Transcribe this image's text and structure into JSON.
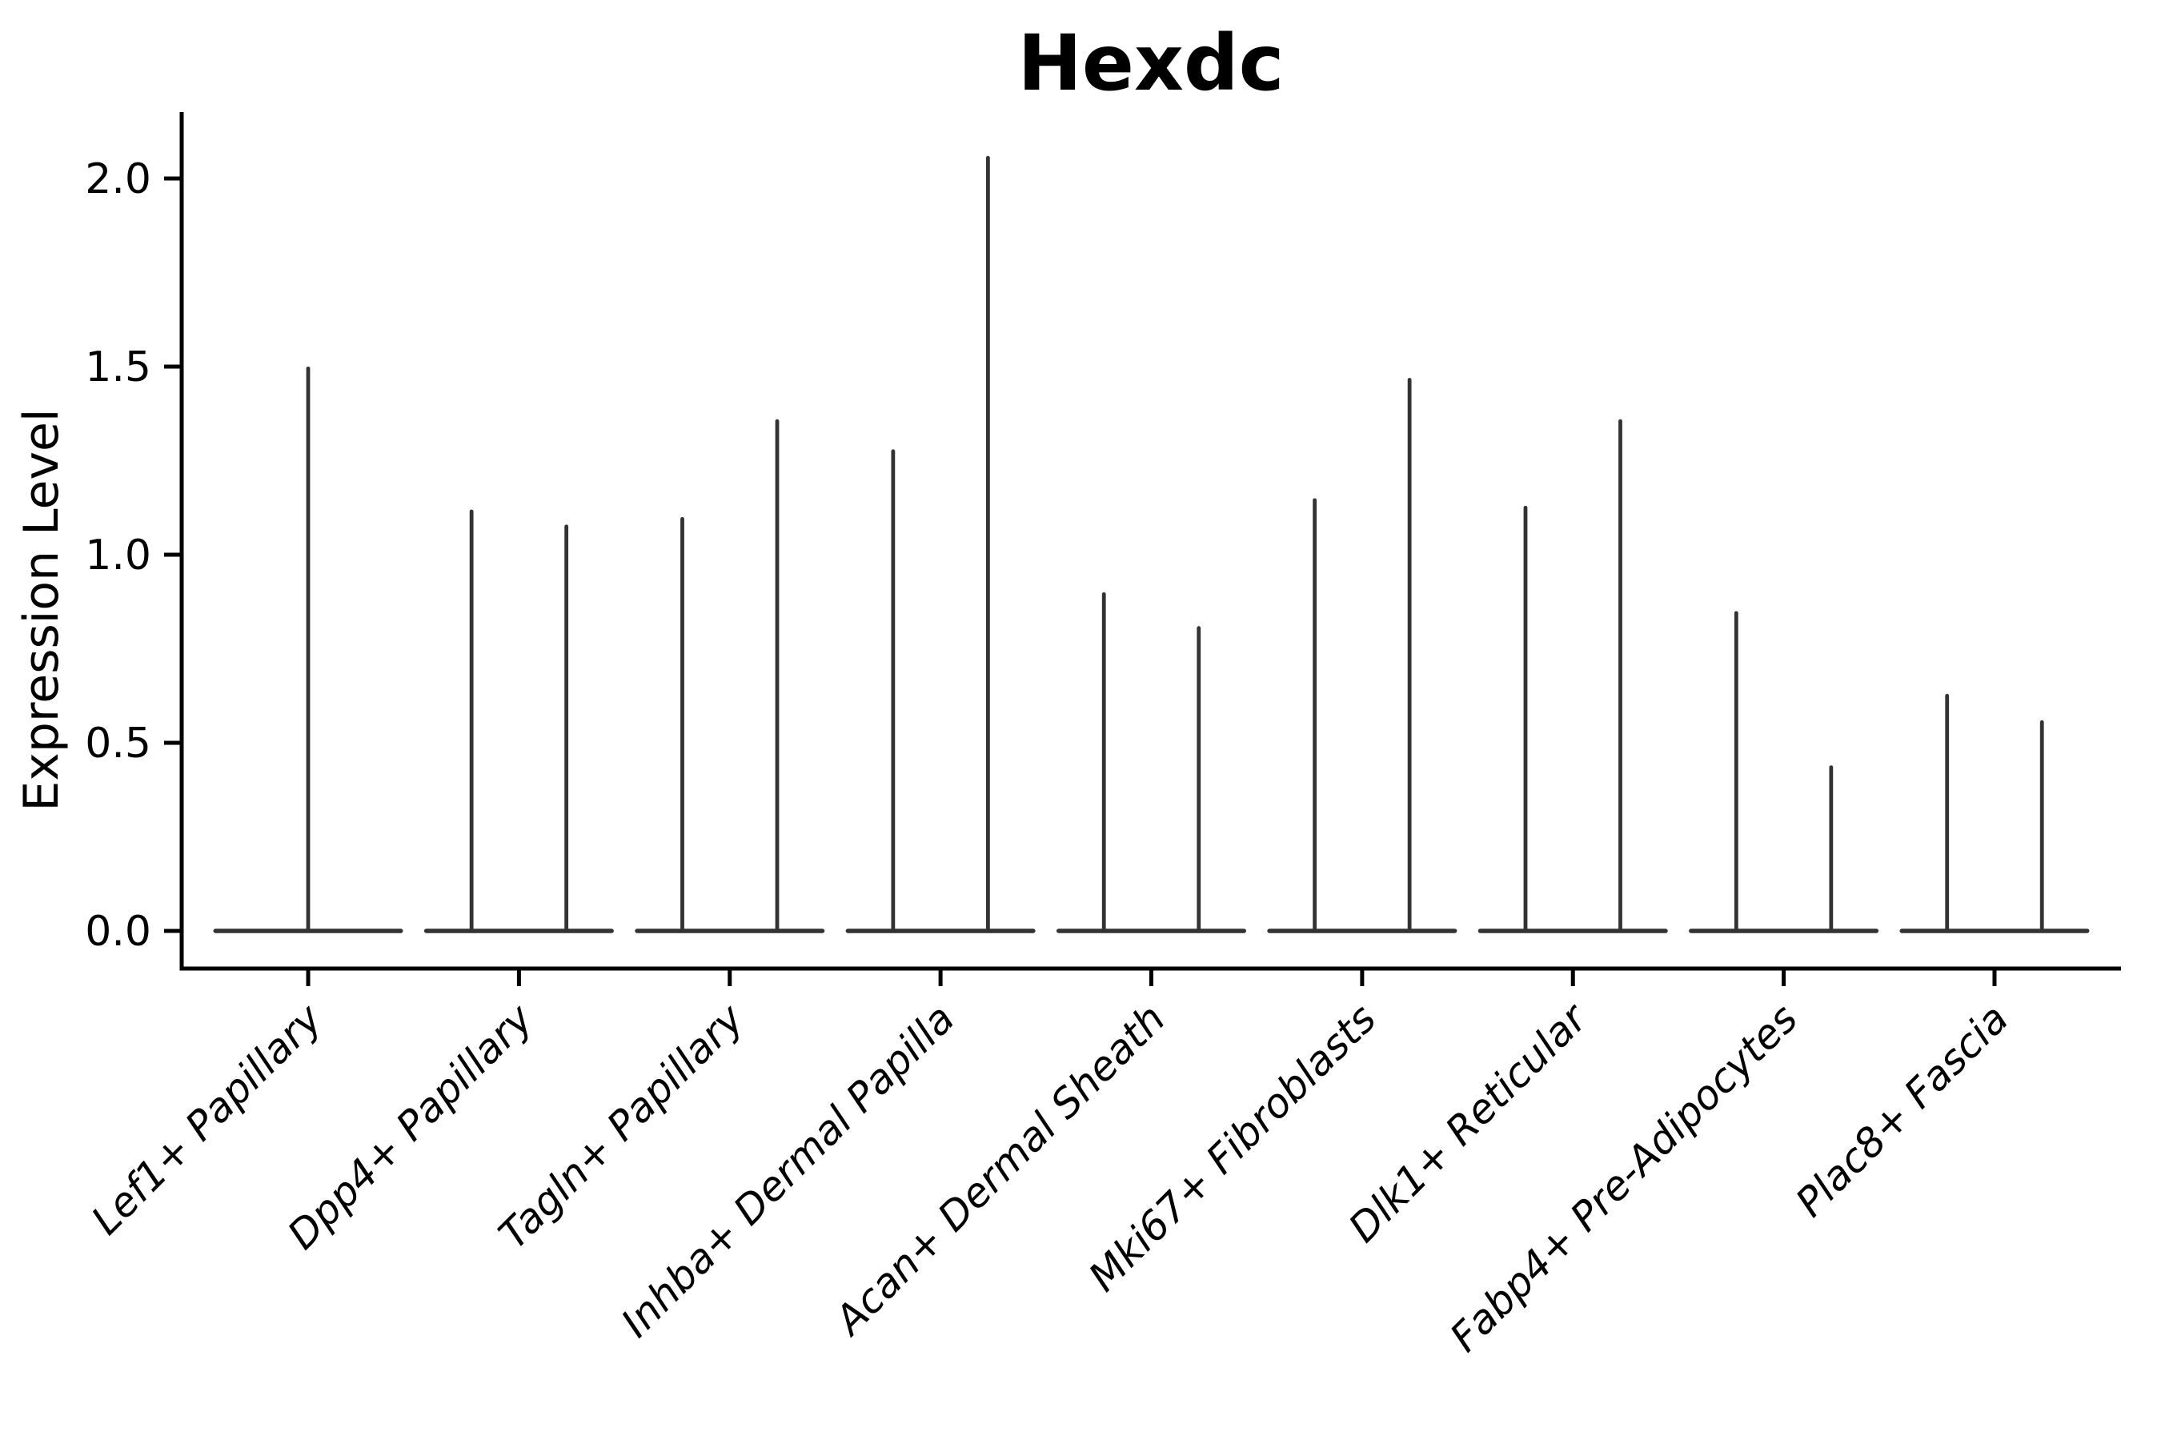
{
  "page": {
    "background_color": "#ffffff"
  },
  "style": {
    "violin_color": "#333333",
    "axis_color": "#000000",
    "text_color": "#000000"
  },
  "chart_data": {
    "type": "violin",
    "title": "Hexdc",
    "xlabel": "",
    "ylabel": "Expression Level",
    "ylim": [
      -0.1,
      2.18
    ],
    "grid": false,
    "legend": "none",
    "yticks": [
      {
        "value": 0.0,
        "label": "0.0"
      },
      {
        "value": 0.5,
        "label": "0.5"
      },
      {
        "value": 1.0,
        "label": "1.0"
      },
      {
        "value": 1.5,
        "label": "1.5"
      },
      {
        "value": 2.0,
        "label": "2.0"
      }
    ],
    "categories": [
      "Lef1+ Papillary",
      "Dpp4+ Papillary",
      "Tagln+ Papillary",
      "Inhba+ Dermal Papilla",
      "Acan+ Dermal Sheath",
      "Mki67+ Fibroblasts",
      "Dlk1+ Reticular",
      "Fabp4+ Pre-Adipocytes",
      "Plac8+ Fascia"
    ],
    "violin_min": 0.0,
    "violins_max_expression": [
      [
        1.5
      ],
      [
        1.12,
        1.08
      ],
      [
        1.1,
        1.36
      ],
      [
        1.28,
        2.06
      ],
      [
        0.9,
        0.81
      ],
      [
        1.15,
        1.47
      ],
      [
        1.13,
        1.36
      ],
      [
        0.85,
        0.44
      ],
      [
        0.63,
        0.56
      ]
    ],
    "description": "Violin plot of Hexdc expression; nearly all density at 0 with thin spikes up to each group's maximum; categories 2-9 contain two violins each, category 1 contains one"
  }
}
